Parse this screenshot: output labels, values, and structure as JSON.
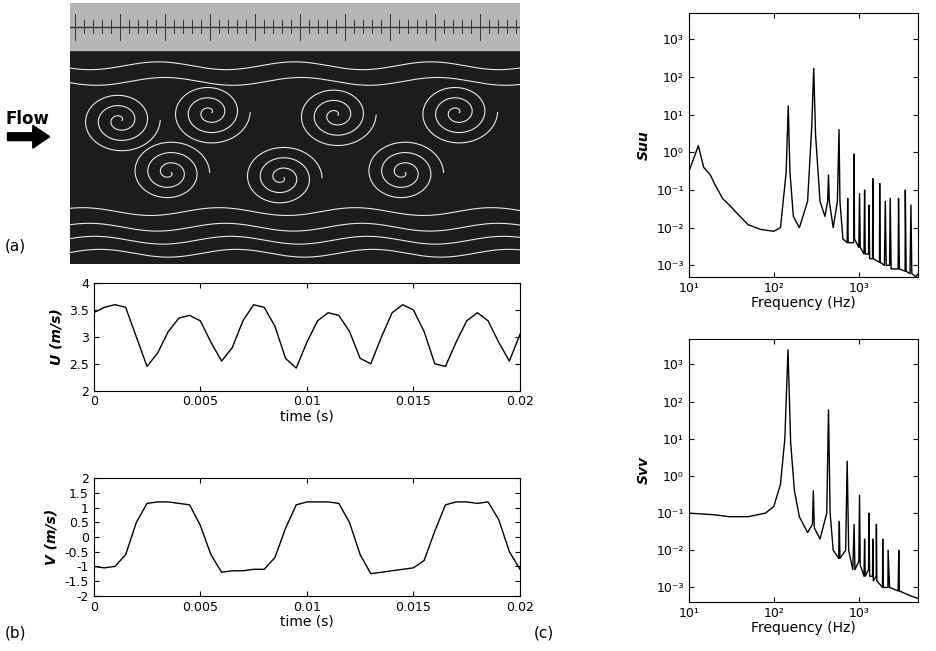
{
  "photo": {
    "panel_label": "(a)",
    "arrow_label": "Flow"
  },
  "chart_data": [
    {
      "type": "line",
      "annotations": [
        "(b)"
      ],
      "xlabel": "time (s)",
      "ylabel": "U (m/s)",
      "color": "#000000",
      "x": [
        0,
        0.0005,
        0.001,
        0.0015,
        0.002,
        0.0025,
        0.003,
        0.0035,
        0.004,
        0.0045,
        0.005,
        0.0055,
        0.006,
        0.0065,
        0.007,
        0.0075,
        0.008,
        0.0085,
        0.009,
        0.0095,
        0.01,
        0.0105,
        0.011,
        0.0115,
        0.012,
        0.0125,
        0.013,
        0.0135,
        0.014,
        0.0145,
        0.015,
        0.0155,
        0.016,
        0.0165,
        0.017,
        0.0175,
        0.018,
        0.0185,
        0.019,
        0.0195,
        0.02
      ],
      "values": [
        3.45,
        3.55,
        3.6,
        3.55,
        3.0,
        2.45,
        2.7,
        3.1,
        3.35,
        3.4,
        3.3,
        2.9,
        2.55,
        2.8,
        3.3,
        3.6,
        3.55,
        3.2,
        2.6,
        2.42,
        2.9,
        3.3,
        3.45,
        3.4,
        3.1,
        2.6,
        2.5,
        3.0,
        3.45,
        3.6,
        3.5,
        3.1,
        2.5,
        2.45,
        2.9,
        3.3,
        3.45,
        3.3,
        2.9,
        2.55,
        3.05
      ],
      "xlim": [
        0,
        0.02
      ],
      "xticks": [
        0,
        0.005,
        0.01,
        0.015,
        0.02
      ],
      "ylim": [
        2,
        4
      ],
      "yticks": [
        2,
        2.5,
        3,
        3.5,
        4
      ]
    },
    {
      "type": "line",
      "xlabel": "time (s)",
      "ylabel": "V (m/s)",
      "color": "#000000",
      "x": [
        0,
        0.0005,
        0.001,
        0.0015,
        0.002,
        0.0025,
        0.003,
        0.0035,
        0.004,
        0.0045,
        0.005,
        0.0055,
        0.006,
        0.0065,
        0.007,
        0.0075,
        0.008,
        0.0085,
        0.009,
        0.0095,
        0.01,
        0.0105,
        0.011,
        0.0115,
        0.012,
        0.0125,
        0.013,
        0.0135,
        0.014,
        0.0145,
        0.015,
        0.0155,
        0.016,
        0.0165,
        0.017,
        0.0175,
        0.018,
        0.0185,
        0.019,
        0.0195,
        0.02
      ],
      "values": [
        -1.0,
        -1.05,
        -1.0,
        -0.6,
        0.5,
        1.15,
        1.2,
        1.2,
        1.15,
        1.1,
        0.4,
        -0.6,
        -1.2,
        -1.15,
        -1.15,
        -1.1,
        -1.1,
        -0.7,
        0.3,
        1.1,
        1.2,
        1.2,
        1.2,
        1.15,
        0.5,
        -0.6,
        -1.25,
        -1.2,
        -1.15,
        -1.1,
        -1.05,
        -0.8,
        0.2,
        1.1,
        1.2,
        1.2,
        1.15,
        1.2,
        0.6,
        -0.5,
        -1.1
      ],
      "xlim": [
        0,
        0.02
      ],
      "xticks": [
        0,
        0.005,
        0.01,
        0.015,
        0.02
      ],
      "ylim": [
        -2,
        2
      ],
      "yticks": [
        -2,
        -1.5,
        -1,
        -0.5,
        0,
        0.5,
        1,
        1.5,
        2
      ]
    },
    {
      "type": "line",
      "log": true,
      "xlabel": "Frequency (Hz)",
      "ylabel": "Suu",
      "color": "#000000",
      "x": [
        10,
        13,
        15,
        18,
        20,
        25,
        30,
        40,
        50,
        70,
        100,
        120,
        140,
        148,
        155,
        170,
        200,
        250,
        280,
        295,
        310,
        350,
        400,
        430,
        440,
        450,
        500,
        560,
        585,
        600,
        650,
        730,
        740,
        750,
        870,
        880,
        890,
        1000,
        1020,
        1040,
        1150,
        1170,
        1190,
        1300,
        1320,
        1340,
        1450,
        1460,
        1480,
        1750,
        1760,
        1780,
        2000,
        2050,
        2100,
        2300,
        2340,
        2400,
        2900,
        2930,
        3000,
        3500,
        3520,
        3600,
        4000,
        4100,
        4200,
        4700,
        5000
      ],
      "values": [
        0.3,
        1.5,
        0.4,
        0.25,
        0.15,
        0.06,
        0.04,
        0.02,
        0.012,
        0.009,
        0.008,
        0.01,
        0.3,
        17,
        0.3,
        0.02,
        0.01,
        0.05,
        5,
        170,
        3,
        0.05,
        0.02,
        0.05,
        0.25,
        0.05,
        0.01,
        0.05,
        4,
        0.05,
        0.005,
        0.004,
        0.06,
        0.004,
        0.004,
        0.9,
        0.005,
        0.003,
        0.08,
        0.003,
        0.002,
        0.1,
        0.002,
        0.002,
        0.04,
        0.0015,
        0.0015,
        0.2,
        0.0015,
        0.0012,
        0.15,
        0.0012,
        0.001,
        0.05,
        0.001,
        0.001,
        0.06,
        0.0008,
        0.0008,
        0.06,
        0.0008,
        0.0007,
        0.1,
        0.0007,
        0.0006,
        0.04,
        0.0006,
        0.0005,
        0.0006
      ],
      "xlim": [
        10,
        5000
      ],
      "xticks": [
        {
          "value": 10,
          "label": "10¹"
        },
        {
          "value": 100,
          "label": "10²"
        },
        {
          "value": 1000,
          "label": "10³"
        }
      ],
      "ylim": [
        0.0005,
        5000
      ],
      "yticks": [
        {
          "value": 0.001,
          "label": "10⁻³"
        },
        {
          "value": 0.01,
          "label": "10⁻²"
        },
        {
          "value": 0.1,
          "label": "10⁻¹"
        },
        {
          "value": 1,
          "label": "10⁰"
        },
        {
          "value": 10,
          "label": "10¹"
        },
        {
          "value": 100,
          "label": "10²"
        },
        {
          "value": 1000,
          "label": "10³"
        }
      ]
    },
    {
      "type": "line",
      "log": true,
      "annotations": [
        "(c)"
      ],
      "xlabel": "Frequency (Hz)",
      "ylabel": "Svv",
      "color": "#000000",
      "x": [
        10,
        20,
        30,
        50,
        80,
        100,
        120,
        135,
        147,
        158,
        175,
        200,
        250,
        285,
        292,
        300,
        350,
        420,
        440,
        460,
        500,
        580,
        590,
        600,
        700,
        730,
        760,
        850,
        880,
        900,
        1000,
        1020,
        1040,
        1150,
        1170,
        1190,
        1300,
        1320,
        1340,
        1450,
        1460,
        1480,
        1600,
        1610,
        1630,
        1900,
        1910,
        1930,
        2200,
        2210,
        2300,
        2900,
        2950,
        3000,
        4000,
        5000
      ],
      "values": [
        0.1,
        0.09,
        0.08,
        0.08,
        0.1,
        0.15,
        0.6,
        10,
        2500,
        8,
        0.4,
        0.08,
        0.03,
        0.05,
        0.4,
        0.04,
        0.02,
        0.1,
        60,
        0.1,
        0.01,
        0.006,
        0.06,
        0.006,
        0.01,
        2.5,
        0.01,
        0.003,
        0.05,
        0.003,
        0.005,
        0.3,
        0.004,
        0.002,
        0.02,
        0.002,
        0.003,
        0.1,
        0.002,
        0.002,
        0.02,
        0.0015,
        0.002,
        0.05,
        0.0015,
        0.001,
        0.02,
        0.001,
        0.001,
        0.01,
        0.001,
        0.0008,
        0.01,
        0.0008,
        0.0006,
        0.0005
      ],
      "xlim": [
        10,
        5000
      ],
      "xticks": [
        {
          "value": 10,
          "label": "10¹"
        },
        {
          "value": 100,
          "label": "10²"
        },
        {
          "value": 1000,
          "label": "10³"
        }
      ],
      "ylim": [
        0.0004,
        5000
      ],
      "yticks": [
        {
          "value": 0.001,
          "label": "10⁻³"
        },
        {
          "value": 0.01,
          "label": "10⁻²"
        },
        {
          "value": 0.1,
          "label": "10⁻¹"
        },
        {
          "value": 1,
          "label": "10⁰"
        },
        {
          "value": 10,
          "label": "10¹"
        },
        {
          "value": 100,
          "label": "10²"
        },
        {
          "value": 1000,
          "label": "10³"
        }
      ]
    }
  ]
}
